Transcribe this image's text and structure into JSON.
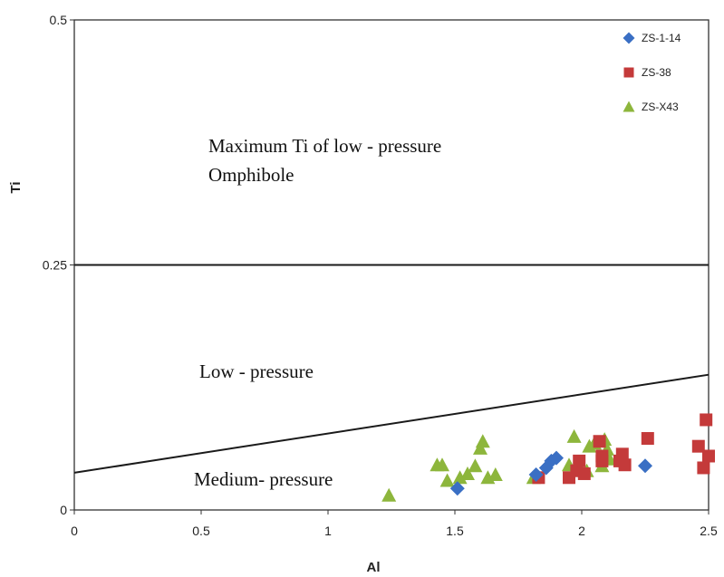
{
  "chart_data": {
    "type": "scatter",
    "xlabel": "Al",
    "ylabel": "Ti",
    "xlim": [
      0,
      2.5
    ],
    "ylim": [
      0,
      0.5
    ],
    "x_ticks": [
      "0",
      "0.5",
      "1",
      "1.5",
      "2",
      "2.5"
    ],
    "y_ticks": [
      "0",
      "0.25",
      "0.5"
    ],
    "grid": false,
    "legend_position": "top-right",
    "region_labels": {
      "top_line1": "Maximum Ti of low - pressure",
      "top_line2": "Omphibole",
      "middle": "Low - pressure",
      "bottom": "Medium- pressure"
    },
    "boundary_lines": [
      {
        "x": [
          0,
          2.5
        ],
        "y": [
          0.25,
          0.25
        ]
      },
      {
        "x": [
          0,
          2.5
        ],
        "y": [
          0.038,
          0.138
        ]
      }
    ],
    "series": [
      {
        "name": "ZS-1-14",
        "marker": "diamond",
        "color": "#3a6fc4",
        "x": [
          1.51,
          1.82,
          1.86,
          1.88,
          1.9,
          2.25
        ],
        "y": [
          0.022,
          0.036,
          0.043,
          0.05,
          0.053,
          0.045
        ]
      },
      {
        "name": "ZS-38",
        "marker": "square",
        "color": "#c43a3a",
        "x": [
          1.83,
          1.95,
          1.98,
          1.99,
          2.01,
          2.07,
          2.08,
          2.08,
          2.15,
          2.16,
          2.17,
          2.26,
          2.46,
          2.48,
          2.49,
          2.5
        ],
        "y": [
          0.033,
          0.033,
          0.04,
          0.05,
          0.037,
          0.07,
          0.055,
          0.05,
          0.05,
          0.057,
          0.046,
          0.073,
          0.065,
          0.043,
          0.092,
          0.055
        ]
      },
      {
        "name": "ZS-X43",
        "marker": "triangle",
        "color": "#8db63c",
        "x": [
          1.24,
          1.43,
          1.45,
          1.47,
          1.52,
          1.55,
          1.58,
          1.6,
          1.61,
          1.63,
          1.66,
          1.81,
          1.95,
          1.97,
          2.02,
          2.03,
          2.05,
          2.08,
          2.09,
          2.1,
          2.11
        ],
        "y": [
          0.015,
          0.046,
          0.046,
          0.03,
          0.033,
          0.037,
          0.045,
          0.063,
          0.07,
          0.033,
          0.036,
          0.033,
          0.046,
          0.075,
          0.04,
          0.065,
          0.068,
          0.045,
          0.072,
          0.062,
          0.052
        ]
      }
    ]
  }
}
